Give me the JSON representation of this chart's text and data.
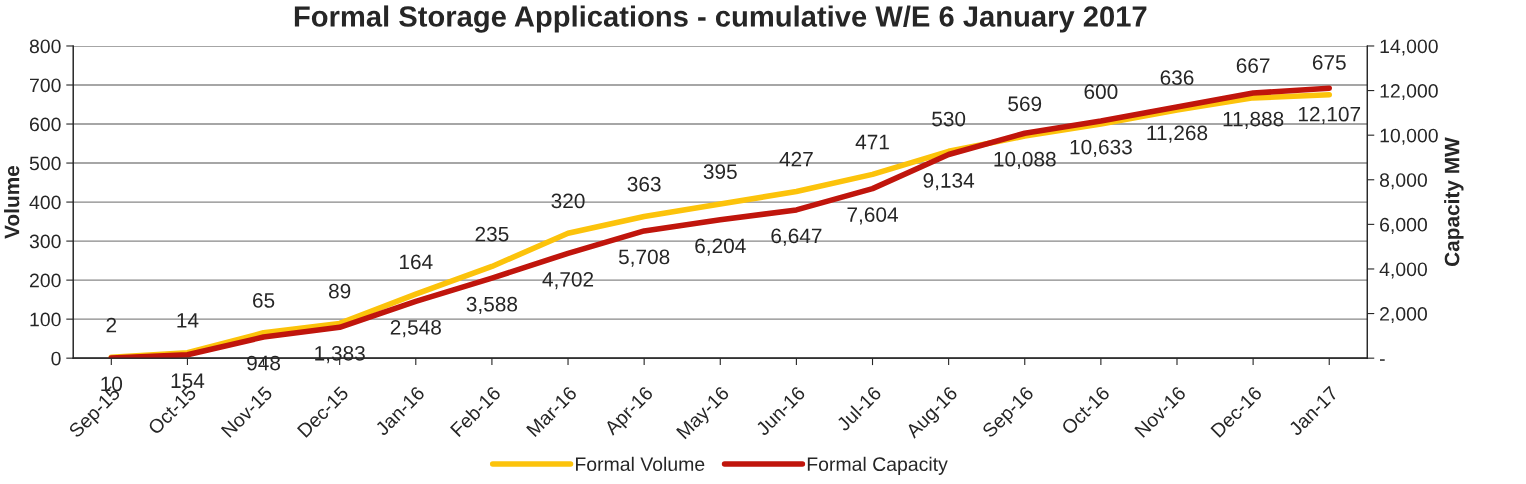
{
  "chart_data": {
    "type": "line",
    "title": "Formal Storage Applications - cumulative W/E 6 January 2017",
    "ylabel": "Volume",
    "y2label": "Capacity MW",
    "categories": [
      "Sep-15",
      "Oct-15",
      "Nov-15",
      "Dec-15",
      "Jan-16",
      "Feb-16",
      "Mar-16",
      "Apr-16",
      "May-16",
      "Jun-16",
      "Jul-16",
      "Aug-16",
      "Sep-16",
      "Oct-16",
      "Nov-16",
      "Dec-16",
      "Jan-17"
    ],
    "series": [
      {
        "name": "Formal Volume",
        "color": "#fcc30b",
        "values": [
          2,
          14,
          65,
          89,
          164,
          235,
          320,
          363,
          395,
          427,
          471,
          530,
          569,
          600,
          636,
          667,
          675
        ],
        "value_labels": [
          "2",
          "14",
          "65",
          "89",
          "164",
          "235",
          "320",
          "363",
          "395",
          "427",
          "471",
          "530",
          "569",
          "600",
          "636",
          "667",
          "675"
        ]
      },
      {
        "name": "Formal Capacity",
        "color": "#c0150c",
        "axis": "y2",
        "values": [
          10,
          154,
          948,
          1383,
          2548,
          3588,
          4702,
          5708,
          6204,
          6647,
          7604,
          9134,
          10088,
          10633,
          11268,
          11888,
          12107
        ],
        "value_labels": [
          "10",
          "154",
          "948",
          "1,383",
          "2,548",
          "3,588",
          "4,702",
          "5,708",
          "6,204",
          "6,647",
          "7,604",
          "9,134",
          "10,088",
          "10,633",
          "11,268",
          "11,888",
          "12,107"
        ]
      }
    ],
    "ylim": [
      0,
      800
    ],
    "yticks": [
      0,
      100,
      200,
      300,
      400,
      500,
      600,
      700,
      800
    ],
    "y2lim": [
      0,
      14000
    ],
    "y2ticks": [
      {
        "value": 0,
        "label": "-"
      },
      {
        "value": 2000,
        "label": "2,000"
      },
      {
        "value": 4000,
        "label": "4,000"
      },
      {
        "value": 6000,
        "label": "6,000"
      },
      {
        "value": 8000,
        "label": "8,000"
      },
      {
        "value": 10000,
        "label": "10,000"
      },
      {
        "value": 12000,
        "label": "12,000"
      },
      {
        "value": 14000,
        "label": "14,000"
      }
    ],
    "grid": "y",
    "legend": "bottom",
    "line_style": "solid",
    "marker": "none"
  }
}
